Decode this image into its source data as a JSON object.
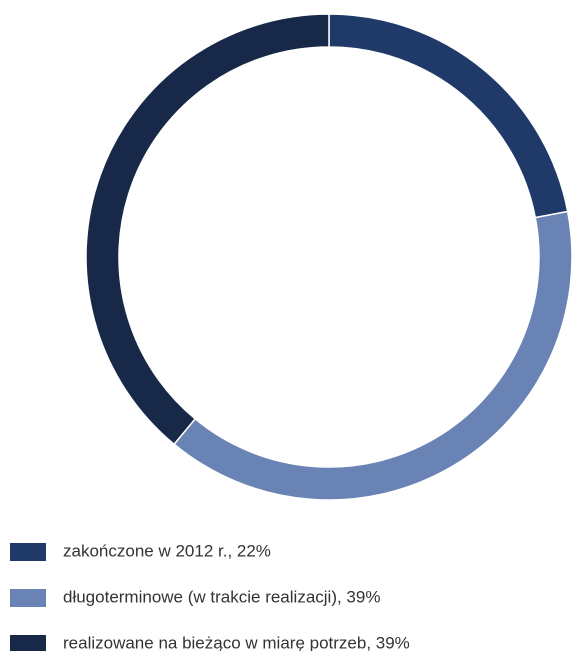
{
  "chart_data": {
    "type": "donut",
    "categories": [
      "zakończone w 2012 r., 22%",
      "długoterminowe (w trakcie realizacji), 39%",
      "realizowane na bieżąco w miarę potrzeb, 39%"
    ],
    "values": [
      22,
      39,
      39
    ],
    "colors": [
      "#1f3a69",
      "#6983b4",
      "#172849"
    ]
  }
}
